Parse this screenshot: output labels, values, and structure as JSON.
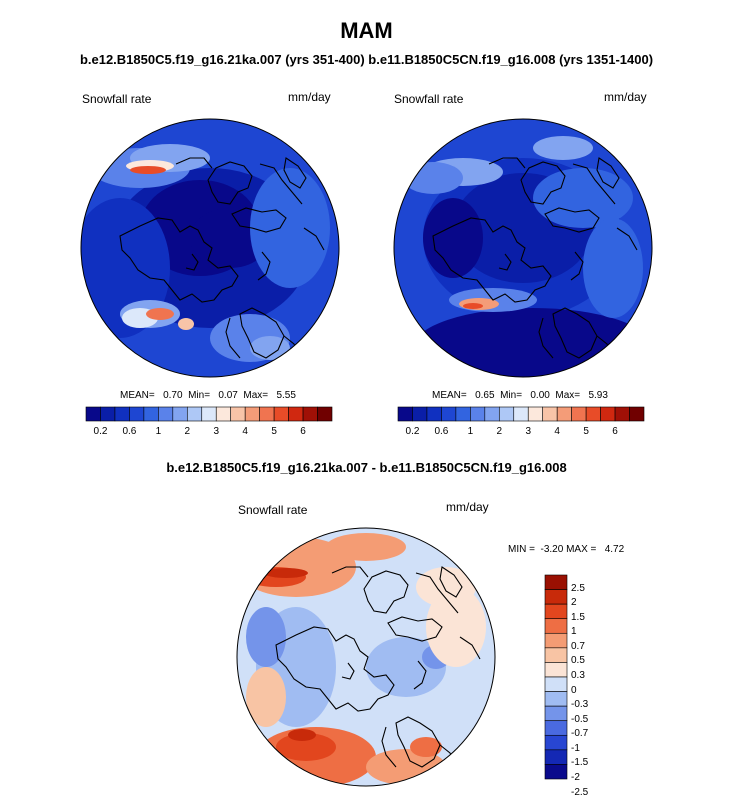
{
  "title": "MAM",
  "subtitle": "b.e12.B1850C5.f19_g16.21ka.007 (yrs 351-400) b.e11.B1850C5CN.f19_g16.008 (yrs 1351-1400)",
  "diff_title": "b.e12.B1850C5.f19_g16.21ka.007 - b.e11.B1850C5CN.f19_g16.008",
  "colors": {
    "abs_scale": [
      "#08088a",
      "#0a1ea8",
      "#1030c0",
      "#1e46d2",
      "#3264e0",
      "#5a82ea",
      "#82a4f0",
      "#aec8f6",
      "#dce8fa",
      "#fce8dc",
      "#f8c4a8",
      "#f49c78",
      "#f07450",
      "#e84c28",
      "#d02810",
      "#a01006",
      "#700000"
    ],
    "diff_scale": [
      "#0a0a8c",
      "#1428b4",
      "#2846d2",
      "#4a6ae0",
      "#7494ea",
      "#a0bcf2",
      "#d0e0f8",
      "#fbe4d6",
      "#f8c4a4",
      "#f49c74",
      "#ee6e44",
      "#e2461e",
      "#c82a0a",
      "#9a1002"
    ],
    "coastline": "#000000"
  },
  "chart_data": [
    {
      "type": "heatmap",
      "panel": "left",
      "label": "Snowfall rate",
      "units": "mm/day",
      "stats_text": "MEAN=   0.70  Min=   0.07  Max=   5.55",
      "mean": 0.7,
      "min": 0.07,
      "max": 5.55,
      "colorbar_ticks": [
        "0.2",
        "0.6",
        "1",
        "2",
        "3",
        "4",
        "5",
        "6"
      ]
    },
    {
      "type": "heatmap",
      "panel": "right",
      "label": "Snowfall rate",
      "units": "mm/day",
      "stats_text": "MEAN=   0.65  Min=   0.00  Max=   5.93",
      "mean": 0.65,
      "min": 0.0,
      "max": 5.93,
      "colorbar_ticks": [
        "0.2",
        "0.6",
        "1",
        "2",
        "3",
        "4",
        "5",
        "6"
      ]
    },
    {
      "type": "heatmap",
      "panel": "difference",
      "label": "Snowfall rate",
      "units": "mm/day",
      "stats_text": "MIN =  -3.20 MAX =   4.72",
      "min": -3.2,
      "max": 4.72,
      "colorbar_ticks": [
        "2.5",
        "2",
        "1.5",
        "1",
        "0.7",
        "0.5",
        "0.3",
        "0",
        "-0.3",
        "-0.5",
        "-0.7",
        "-1",
        "-1.5",
        "-2",
        "-2.5"
      ]
    }
  ]
}
